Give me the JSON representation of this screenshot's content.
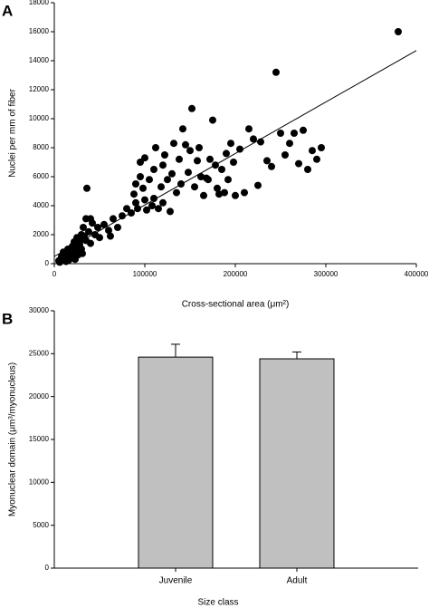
{
  "chart_data": [
    {
      "type": "scatter",
      "panel": "A",
      "ylabel": "Nuclei per mm of fiber",
      "xlabel": "Cross-sectional area (μm²)",
      "xlim": [
        0,
        400000
      ],
      "xticks": [
        0,
        100000,
        200000,
        300000,
        400000
      ],
      "ylim": [
        0,
        18000
      ],
      "yticks": [
        0,
        2000,
        4000,
        6000,
        8000,
        10000,
        12000,
        14000,
        16000,
        18000
      ],
      "color": "#000000",
      "fit_line": {
        "x": [
          0,
          400000
        ],
        "y": [
          500,
          14700
        ]
      },
      "x": [
        5000,
        8000,
        10000,
        12000,
        15000,
        15000,
        18000,
        20000,
        20000,
        22000,
        25000,
        25000,
        28000,
        30000,
        30000,
        32000,
        35000,
        35000,
        36000,
        38000,
        40000,
        40000,
        42000,
        45000,
        48000,
        50000,
        55000,
        60000,
        62000,
        65000,
        70000,
        75000,
        80000,
        85000,
        88000,
        90000,
        90000,
        92000,
        95000,
        95000,
        98000,
        100000,
        100000,
        102000,
        105000,
        108000,
        110000,
        110000,
        112000,
        115000,
        118000,
        120000,
        120000,
        122000,
        125000,
        128000,
        130000,
        132000,
        135000,
        138000,
        140000,
        142000,
        145000,
        148000,
        150000,
        152000,
        155000,
        158000,
        160000,
        162000,
        165000,
        168000,
        170000,
        172000,
        175000,
        178000,
        180000,
        182000,
        185000,
        188000,
        190000,
        192000,
        195000,
        198000,
        200000,
        205000,
        210000,
        215000,
        220000,
        225000,
        228000,
        235000,
        240000,
        245000,
        250000,
        255000,
        260000,
        265000,
        270000,
        275000,
        280000,
        285000,
        290000,
        295000,
        380000,
        6000,
        9000,
        11000,
        13000,
        16000,
        17000,
        19000,
        21000,
        23000,
        24000,
        26000,
        27000,
        29000,
        31000,
        33000
      ],
      "y": [
        200,
        500,
        800,
        300,
        600,
        1000,
        400,
        1200,
        700,
        1500,
        900,
        1800,
        1300,
        2000,
        1000,
        2500,
        1600,
        3100,
        5200,
        2200,
        3100,
        1400,
        2800,
        2000,
        2500,
        1800,
        2700,
        2300,
        1900,
        3100,
        2500,
        3300,
        3800,
        3500,
        4800,
        4200,
        5500,
        3800,
        7000,
        6000,
        5200,
        4400,
        7300,
        3700,
        5800,
        4000,
        6500,
        4500,
        8000,
        3800,
        5300,
        6800,
        4200,
        7500,
        5800,
        3600,
        6200,
        8300,
        4900,
        7200,
        5500,
        9300,
        8200,
        6300,
        7800,
        10700,
        5300,
        7100,
        8000,
        6000,
        4700,
        5900,
        5800,
        7200,
        9900,
        6800,
        5200,
        4800,
        6500,
        4900,
        7600,
        5800,
        8300,
        7000,
        4700,
        7900,
        4900,
        9300,
        8600,
        5400,
        8400,
        7100,
        6700,
        13200,
        9000,
        7500,
        8300,
        9000,
        6900,
        9200,
        6500,
        7800,
        7200,
        8000,
        16000,
        100,
        300,
        400,
        150,
        250,
        800,
        550,
        900,
        300,
        1300,
        600,
        1100,
        1600,
        700,
        1900
      ]
    },
    {
      "type": "bar",
      "panel": "B",
      "ylabel": "Myonuclear domain (μm³/myonucleus)",
      "xlabel": "Size class",
      "categories": [
        "Juvenile",
        "Adult"
      ],
      "values": [
        24600,
        24400
      ],
      "errors": [
        1500,
        800
      ],
      "ylim": [
        0,
        30000
      ],
      "yticks": [
        0,
        5000,
        10000,
        15000,
        20000,
        25000,
        30000
      ],
      "color": "#c0c0c0"
    }
  ]
}
